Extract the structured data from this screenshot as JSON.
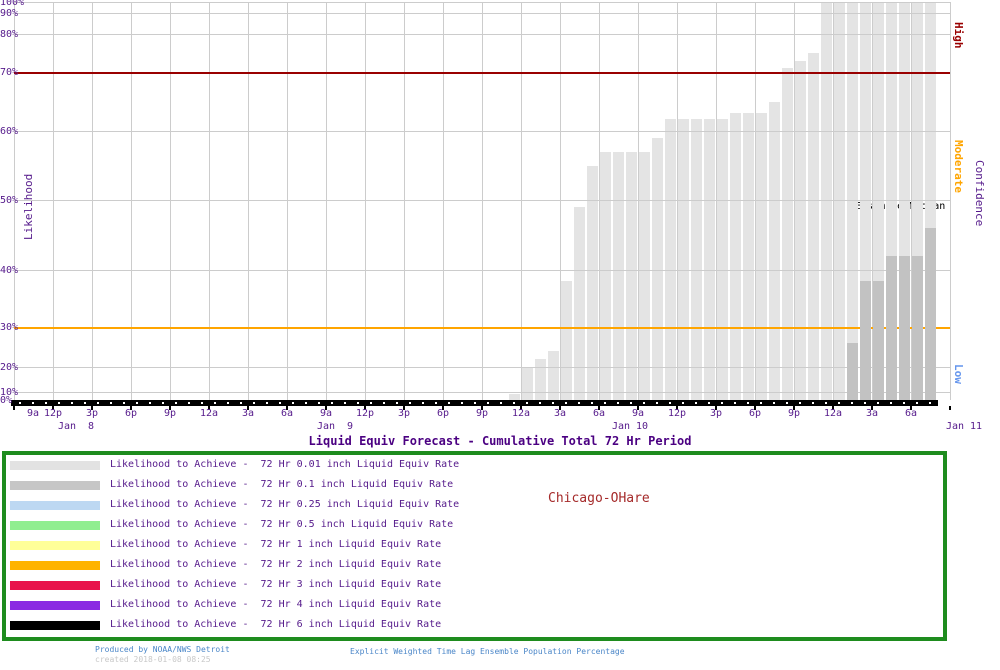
{
  "title": "Liquid Equiv Forecast - Cumulative Total 72 Hr Period",
  "location_label": "Chicago-OHare",
  "y_axis": {
    "label": "Likelihood"
  },
  "right_axis": {
    "label": "Confidence",
    "levels": [
      {
        "text": "High",
        "color": "#990000"
      },
      {
        "text": "Moderate",
        "color": "#FFA500"
      },
      {
        "text": "Low",
        "color": "#6495ED"
      }
    ]
  },
  "annotations": {
    "ensemble_median": "Ensemble Median"
  },
  "legend": {
    "items": [
      {
        "color": "#E2E2E2",
        "label": "Likelihood to Achieve -  72 Hr 0.01 inch Liquid Equiv Rate"
      },
      {
        "color": "#C6C6C6",
        "label": "Likelihood to Achieve -  72 Hr 0.1 inch Liquid Equiv Rate"
      },
      {
        "color": "#BDD8F2",
        "label": "Likelihood to Achieve -  72 Hr 0.25 inch Liquid Equiv Rate"
      },
      {
        "color": "#90EE90",
        "label": "Likelihood to Achieve -  72 Hr 0.5 inch Liquid Equiv Rate"
      },
      {
        "color": "#FFFF99",
        "label": "Likelihood to Achieve -  72 Hr 1 inch Liquid Equiv Rate"
      },
      {
        "color": "#FFB300",
        "label": "Likelihood to Achieve -  72 Hr 2 inch Liquid Equiv Rate"
      },
      {
        "color": "#E8134B",
        "label": "Likelihood to Achieve -  72 Hr 3 inch Liquid Equiv Rate"
      },
      {
        "color": "#8A2BE2",
        "label": "Likelihood to Achieve -  72 Hr 4 inch Liquid Equiv Rate"
      },
      {
        "color": "#000000",
        "label": "Likelihood to Achieve -  72 Hr 6 inch Liquid Equiv Rate"
      }
    ]
  },
  "footer": {
    "produced_by": "Produced by NOAA/NWS Detroit",
    "created": "created 2018-01-08 08:25",
    "subtitle": "Explicit Weighted Time Lag Ensemble Population Percentage"
  },
  "chart_data": {
    "type": "bar",
    "title": "Liquid Equiv Forecast - Cumulative Total 72 Hr Period",
    "location": "Chicago-OHare",
    "ylabel": "Likelihood",
    "y_axis": {
      "unit": "%",
      "tick_percents": [
        0,
        10,
        20,
        30,
        40,
        50,
        60,
        70,
        80,
        90,
        100
      ],
      "scale": "nonlinear-probability",
      "ylim": [
        0,
        100
      ]
    },
    "x_axis": {
      "start": "Jan 8 9am",
      "end": "Jan 11 9am",
      "hours_total": 72,
      "tick_interval_hours": 3,
      "hour_tick_labels": [
        "9a",
        "12p",
        "3p",
        "6p",
        "9p",
        "12a",
        "3a",
        "6a",
        "9a",
        "12p",
        "3p",
        "6p",
        "9p",
        "12a",
        "3a",
        "6a",
        "9a",
        "12p",
        "3p",
        "6p",
        "9p",
        "12a",
        "3a",
        "6a"
      ],
      "date_labels": [
        "Jan  8",
        "Jan  9",
        "Jan 10",
        "Jan 11"
      ]
    },
    "reference_lines": [
      {
        "percent": 70,
        "color": "#990000",
        "label": "High"
      },
      {
        "percent": 30,
        "color": "#FFA500",
        "label": "Moderate"
      }
    ],
    "grid": true,
    "legend_position": "bottom",
    "series": [
      {
        "name": "Likelihood to Achieve -  72 Hr 0.01 inch Liquid Equiv Rate",
        "color": "#E4E4E4",
        "start_hour": 38,
        "values_percent": [
          8,
          20,
          22,
          24,
          38,
          49,
          55,
          57,
          57,
          57,
          57,
          59,
          62,
          62,
          62,
          62,
          62,
          63,
          63,
          63,
          65,
          71,
          73,
          75,
          100,
          100,
          100,
          100,
          100,
          100,
          100,
          100,
          100
        ]
      },
      {
        "name": "Likelihood to Achieve -  72 Hr 0.1 inch Liquid Equiv Rate",
        "color": "#C2C2C2",
        "start_hour": 64,
        "values_percent": [
          26,
          38,
          38,
          42,
          42,
          42,
          46
        ]
      }
    ]
  }
}
